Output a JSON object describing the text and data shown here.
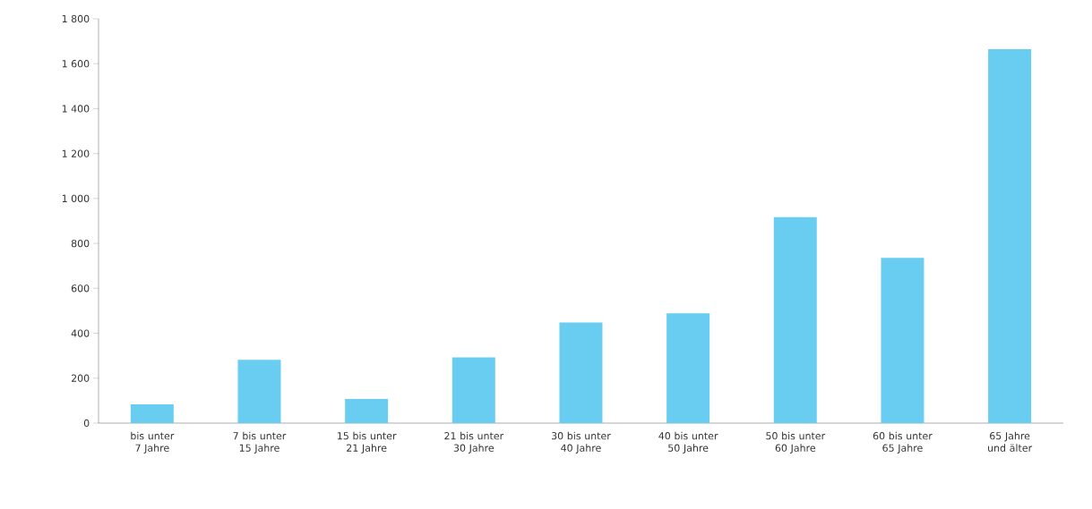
{
  "chart_data": {
    "type": "bar",
    "categories": [
      "bis unter 7 Jahre",
      "7 bis unter 15 Jahre",
      "15 bis unter 21 Jahre",
      "21 bis unter 30 Jahre",
      "30 bis unter 40 Jahre",
      "40 bis unter 50 Jahre",
      "50 bis unter 60 Jahre",
      "60 bis unter 65 Jahre",
      "65 Jahre und älter"
    ],
    "values": [
      84,
      282,
      107,
      293,
      448,
      489,
      917,
      736,
      1665
    ],
    "color": "#69cdf1",
    "ylim": [
      0,
      1800
    ],
    "yticks": [
      0,
      200,
      400,
      600,
      800,
      {
        "value": 1000,
        "label": "1 000"
      },
      {
        "value": 1200,
        "label": "1 200"
      },
      {
        "value": 1400,
        "label": "1 400"
      },
      {
        "value": 1600,
        "label": "1 600"
      },
      {
        "value": 1800,
        "label": "1 800"
      }
    ],
    "grid": false
  }
}
